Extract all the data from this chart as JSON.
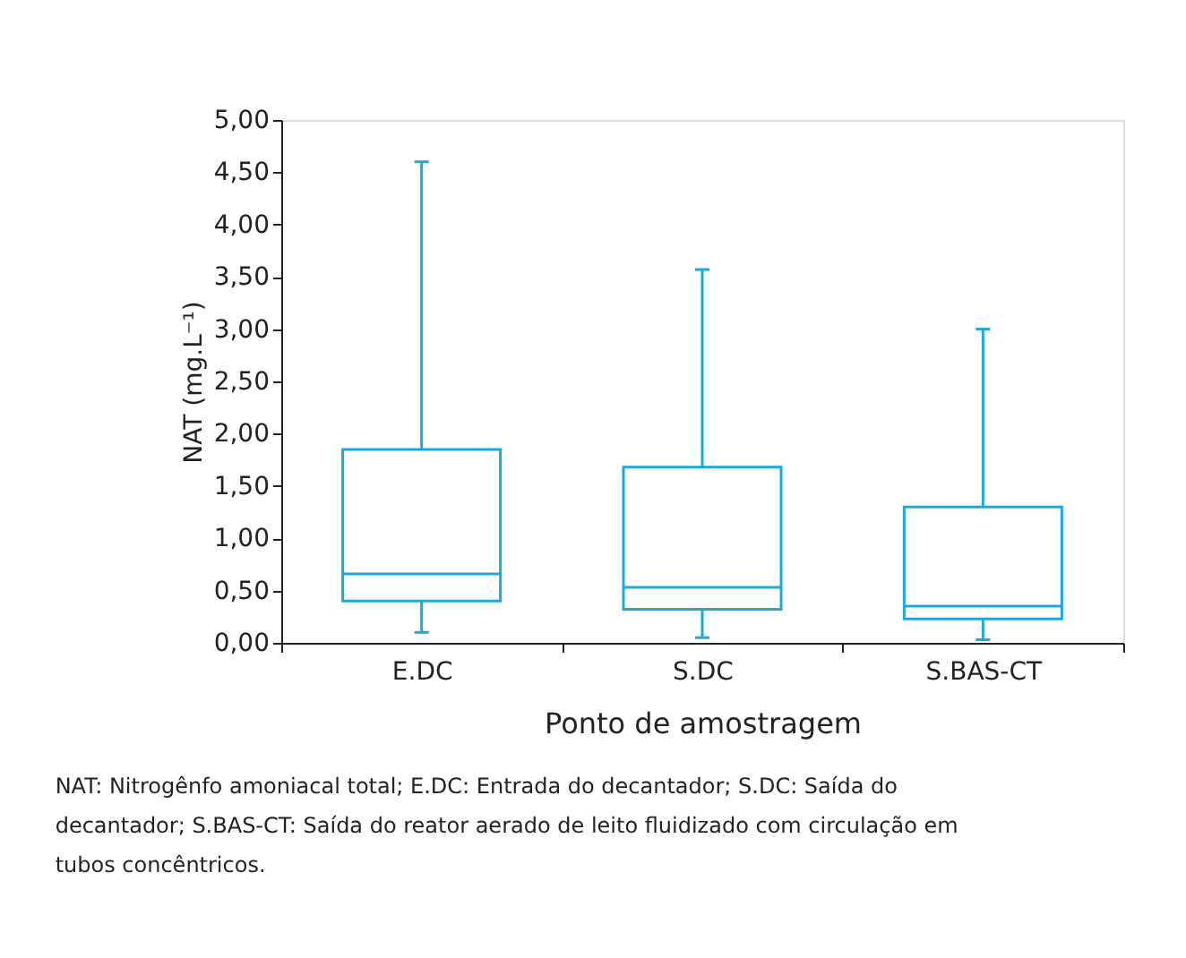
{
  "chart_data": {
    "type": "box",
    "xlabel": "Ponto de amostragem",
    "ylabel": "NAT (mg.L⁻¹)",
    "categories": [
      "E.DC",
      "S.DC",
      "S.BAS-CT"
    ],
    "series": [
      {
        "color": "#1ba9d9",
        "boxes": [
          {
            "low": 0.1,
            "q1": 0.4,
            "median": 0.66,
            "q3": 1.85,
            "high": 4.6
          },
          {
            "low": 0.05,
            "q1": 0.32,
            "median": 0.53,
            "q3": 1.68,
            "high": 3.57
          },
          {
            "low": 0.03,
            "q1": 0.23,
            "median": 0.35,
            "q3": 1.3,
            "high": 3.0
          }
        ]
      }
    ],
    "ylim": [
      0,
      5
    ],
    "yticks": [
      {
        "value": 0,
        "label": "0,00"
      },
      {
        "value": 0.5,
        "label": "0,50"
      },
      {
        "value": 1,
        "label": "1,00"
      },
      {
        "value": 1.5,
        "label": "1,50"
      },
      {
        "value": 2,
        "label": "2,00"
      },
      {
        "value": 2.5,
        "label": "2,50"
      },
      {
        "value": 3,
        "label": "3,00"
      },
      {
        "value": 3.5,
        "label": "3,50"
      },
      {
        "value": 4,
        "label": "4,00"
      },
      {
        "value": 4.5,
        "label": "4,50"
      },
      {
        "value": 5,
        "label": "5,00"
      }
    ],
    "grid": false,
    "annotations": [
      "NAT: Nitrogênfo amoniacal total; E.DC: Entrada do decantador; S.DC: Saída do decantador; S.BAS-CT: Saída do reator aerado de leito fluidizado com circulação em tubos concêntricos."
    ]
  }
}
